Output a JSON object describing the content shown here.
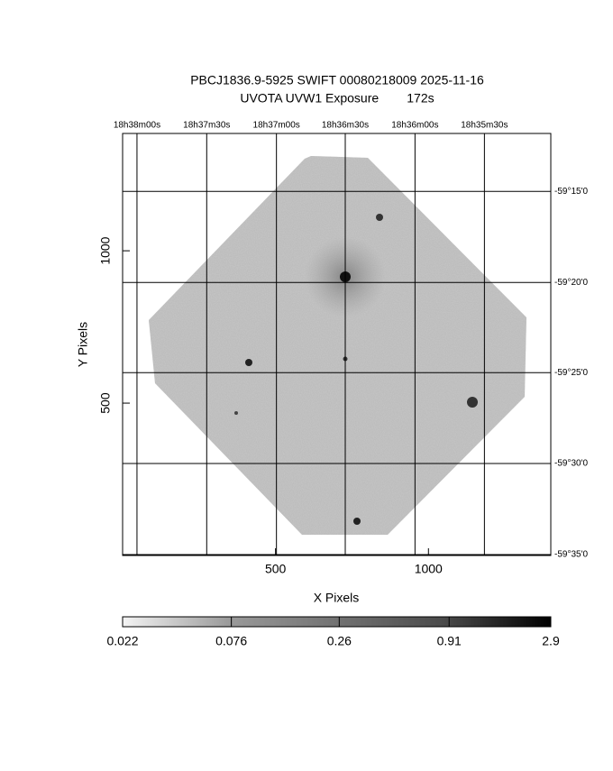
{
  "chart_data": {
    "type": "image",
    "title": "PBCJ1836.9-5925 SWIFT 00080218009 2025-11-16",
    "subtitle": "UVOTA UVW1 Exposure        172s",
    "xlabel": "X Pixels",
    "ylabel": "Y Pixels",
    "xlim": [
      0,
      1400
    ],
    "ylim": [
      0,
      1385
    ],
    "xticks": [
      500,
      1000
    ],
    "yticks": [
      500,
      1000
    ],
    "x2ticks": [
      {
        "value": 47,
        "label": "18h38m00s"
      },
      {
        "value": 275,
        "label": "18h37m30s"
      },
      {
        "value": 503,
        "label": "18h37m00s"
      },
      {
        "value": 728,
        "label": "18h36m30s"
      },
      {
        "value": 956,
        "label": "18h36m00s"
      },
      {
        "value": 1183,
        "label": "18h35m30s"
      }
    ],
    "y2ticks": [
      {
        "value": 1195,
        "label": "-59°15'0"
      },
      {
        "value": 896,
        "label": "-59°20'0"
      },
      {
        "value": 600,
        "label": "-59°25'0"
      },
      {
        "value": 302,
        "label": "-59°30'0"
      },
      {
        "value": 3,
        "label": "-59°35'0"
      }
    ],
    "grid": true,
    "colorbar": {
      "lim": [
        0.022,
        2.9
      ],
      "log": true,
      "ticks": [
        0.022,
        0.076,
        0.26,
        0.91,
        2.9
      ]
    }
  }
}
